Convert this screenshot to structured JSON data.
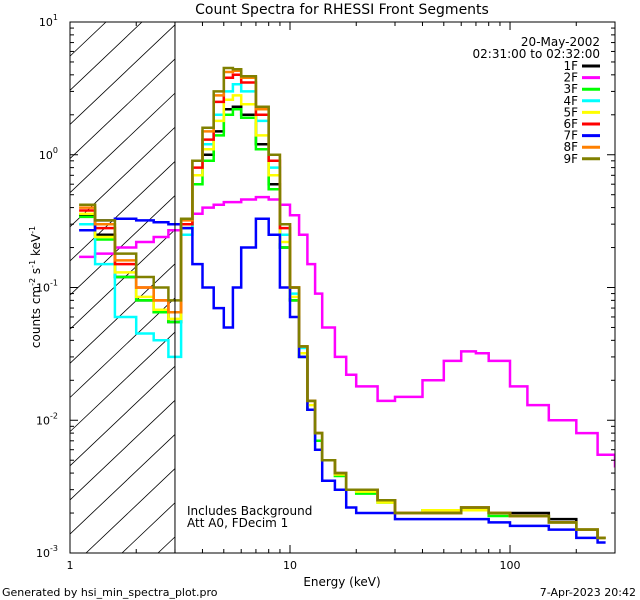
{
  "chart_data": {
    "type": "line",
    "title": "Count Spectra for RHESSI Front Segments",
    "xlabel": "Energy (keV)",
    "ylabel_base": "counts cm",
    "ylabel_sup1": "-2",
    "ylabel_mid": " s",
    "ylabel_sup2": "-1",
    "ylabel_end": " keV",
    "ylabel_sup3": "-1",
    "xscale": "log",
    "yscale": "log",
    "xlim": [
      1,
      300
    ],
    "ylim": [
      0.001,
      10
    ],
    "x_ticks": [
      {
        "value": 1,
        "label": "1"
      },
      {
        "value": 10,
        "label": "10"
      },
      {
        "value": 100,
        "label": "100"
      }
    ],
    "y_ticks": [
      {
        "value": 0.001,
        "base": "10",
        "exp": "-3"
      },
      {
        "value": 0.01,
        "base": "10",
        "exp": "-2"
      },
      {
        "value": 0.1,
        "base": "10",
        "exp": "-1"
      },
      {
        "value": 1,
        "base": "10",
        "exp": "0"
      },
      {
        "value": 10,
        "base": "10",
        "exp": "1"
      }
    ],
    "shaded_region": {
      "x_from": 1,
      "x_to": 3,
      "style": "hatched"
    },
    "date": "20-May-2002",
    "time_range": "02:31:00 to 02:32:00",
    "annotations": [
      "Includes Background",
      "Att A0, FDecim 1"
    ],
    "series": [
      {
        "name": "1F",
        "color": "#000000",
        "x": [
          1.1,
          1.3,
          1.6,
          2.0,
          2.4,
          2.8,
          3.2,
          3.6,
          4.0,
          4.5,
          5.0,
          5.5,
          6.0,
          7.0,
          8.0,
          9.0,
          10,
          11,
          12,
          13,
          14,
          16,
          18,
          20,
          25,
          30,
          40,
          60,
          80,
          100,
          150,
          200,
          250
        ],
        "values": [
          0.35,
          0.25,
          0.12,
          0.08,
          0.065,
          0.055,
          0.3,
          0.7,
          1.0,
          1.5,
          2.2,
          2.3,
          2.0,
          1.2,
          0.6,
          0.2,
          0.08,
          0.03,
          0.012,
          0.008,
          0.005,
          0.004,
          0.003,
          0.003,
          0.0025,
          0.002,
          0.002,
          0.0022,
          0.002,
          0.002,
          0.0018,
          0.0015,
          0.0013
        ]
      },
      {
        "name": "2F",
        "color": "#ff00ff",
        "x": [
          1.1,
          1.3,
          1.6,
          2.0,
          2.4,
          2.8,
          3.2,
          3.6,
          4.0,
          4.5,
          5.0,
          6.0,
          7.0,
          8.0,
          9.0,
          10,
          11,
          12,
          13,
          14,
          16,
          18,
          20,
          25,
          30,
          40,
          50,
          60,
          70,
          80,
          100,
          120,
          150,
          200,
          250,
          300
        ],
        "values": [
          0.17,
          0.18,
          0.2,
          0.22,
          0.24,
          0.27,
          0.3,
          0.36,
          0.4,
          0.42,
          0.44,
          0.46,
          0.48,
          0.46,
          0.42,
          0.35,
          0.25,
          0.15,
          0.09,
          0.05,
          0.03,
          0.022,
          0.018,
          0.014,
          0.015,
          0.02,
          0.028,
          0.033,
          0.032,
          0.028,
          0.018,
          0.013,
          0.01,
          0.008,
          0.0055,
          0.0045
        ]
      },
      {
        "name": "3F",
        "color": "#00ff00",
        "x": [
          1.1,
          1.3,
          1.6,
          2.0,
          2.4,
          2.8,
          3.2,
          3.6,
          4.0,
          4.5,
          5.0,
          5.5,
          6.0,
          7.0,
          8.0,
          9.0,
          10,
          11,
          12,
          13,
          14,
          16,
          18,
          20,
          25,
          30,
          40,
          60,
          80,
          100,
          150,
          200,
          250
        ],
        "values": [
          0.34,
          0.23,
          0.12,
          0.08,
          0.065,
          0.055,
          0.28,
          0.6,
          0.9,
          1.4,
          2.0,
          2.2,
          1.9,
          1.1,
          0.55,
          0.2,
          0.08,
          0.03,
          0.012,
          0.007,
          0.005,
          0.0038,
          0.003,
          0.0028,
          0.0024,
          0.002,
          0.0021,
          0.0021,
          0.0019,
          0.0019,
          0.0017,
          0.0015,
          0.0013
        ]
      },
      {
        "name": "4F",
        "color": "#00ffff",
        "x": [
          1.1,
          1.3,
          1.6,
          2.0,
          2.4,
          2.8,
          3.2,
          3.6,
          4.0,
          4.5,
          5.0,
          5.5,
          6.0,
          7.0,
          8.0,
          9.0,
          10,
          11,
          12,
          13,
          14,
          16,
          18,
          20,
          25,
          30,
          40,
          60,
          80,
          100,
          150,
          200,
          250
        ],
        "values": [
          0.3,
          0.15,
          0.06,
          0.045,
          0.04,
          0.03,
          0.25,
          0.7,
          1.2,
          2.0,
          3.0,
          3.4,
          3.0,
          1.8,
          0.8,
          0.25,
          0.09,
          0.035,
          0.014,
          0.008,
          0.005,
          0.004,
          0.003,
          0.003,
          0.0025,
          0.002,
          0.002,
          0.0022,
          0.002,
          0.0019,
          0.0017,
          0.0015,
          0.0013
        ]
      },
      {
        "name": "5F",
        "color": "#ffff00",
        "x": [
          1.1,
          1.3,
          1.6,
          2.0,
          2.4,
          2.8,
          3.2,
          3.6,
          4.0,
          4.5,
          5.0,
          5.5,
          6.0,
          7.0,
          8.0,
          9.0,
          10,
          11,
          12,
          13,
          14,
          16,
          18,
          20,
          25,
          30,
          40,
          60,
          80,
          100,
          150,
          200,
          250
        ],
        "values": [
          0.36,
          0.24,
          0.13,
          0.085,
          0.068,
          0.058,
          0.3,
          0.7,
          1.1,
          1.8,
          2.6,
          2.8,
          2.4,
          1.4,
          0.7,
          0.22,
          0.085,
          0.032,
          0.013,
          0.008,
          0.005,
          0.0039,
          0.003,
          0.0029,
          0.0024,
          0.002,
          0.0021,
          0.0021,
          0.002,
          0.0019,
          0.0017,
          0.0015,
          0.0013
        ]
      },
      {
        "name": "6F",
        "color": "#ff0000",
        "x": [
          1.1,
          1.3,
          1.6,
          2.0,
          2.4,
          2.8,
          3.2,
          3.6,
          4.0,
          4.5,
          5.0,
          5.5,
          6.0,
          7.0,
          8.0,
          9.0,
          10,
          11,
          12,
          13,
          14,
          16,
          18,
          20,
          25,
          30,
          40,
          60,
          80,
          100,
          150,
          200,
          250
        ],
        "values": [
          0.38,
          0.28,
          0.15,
          0.1,
          0.08,
          0.065,
          0.3,
          0.8,
          1.3,
          2.5,
          3.8,
          4.0,
          3.5,
          2.0,
          0.9,
          0.28,
          0.1,
          0.036,
          0.014,
          0.008,
          0.005,
          0.004,
          0.003,
          0.003,
          0.0025,
          0.002,
          0.002,
          0.0022,
          0.002,
          0.0019,
          0.0017,
          0.0015,
          0.0013
        ]
      },
      {
        "name": "7F",
        "color": "#0000ff",
        "x": [
          1.1,
          1.3,
          1.6,
          2.0,
          2.4,
          2.8,
          3.2,
          3.6,
          4.0,
          4.5,
          5.0,
          5.5,
          6.0,
          7.0,
          8.0,
          9.0,
          10,
          11,
          12,
          13,
          14,
          16,
          18,
          20,
          25,
          30,
          40,
          60,
          80,
          100,
          150,
          200,
          250
        ],
        "values": [
          0.27,
          0.32,
          0.33,
          0.32,
          0.31,
          0.3,
          0.28,
          0.15,
          0.1,
          0.07,
          0.05,
          0.1,
          0.2,
          0.33,
          0.25,
          0.1,
          0.06,
          0.03,
          0.012,
          0.006,
          0.0035,
          0.003,
          0.0022,
          0.002,
          0.002,
          0.0018,
          0.0018,
          0.0018,
          0.0017,
          0.0016,
          0.0015,
          0.0013,
          0.0012
        ]
      },
      {
        "name": "8F",
        "color": "#ff8000",
        "x": [
          1.1,
          1.3,
          1.6,
          2.0,
          2.4,
          2.8,
          3.2,
          3.6,
          4.0,
          4.5,
          5.0,
          5.5,
          6.0,
          7.0,
          8.0,
          9.0,
          10,
          11,
          12,
          13,
          14,
          16,
          18,
          20,
          25,
          30,
          40,
          60,
          80,
          100,
          150,
          200,
          250
        ],
        "values": [
          0.4,
          0.3,
          0.16,
          0.1,
          0.08,
          0.065,
          0.32,
          0.9,
          1.5,
          2.8,
          4.2,
          4.3,
          3.8,
          2.2,
          1.0,
          0.3,
          0.1,
          0.036,
          0.014,
          0.008,
          0.005,
          0.004,
          0.003,
          0.003,
          0.0025,
          0.002,
          0.002,
          0.0022,
          0.002,
          0.0019,
          0.0017,
          0.0015,
          0.0013
        ]
      },
      {
        "name": "9F",
        "color": "#808000",
        "x": [
          1.1,
          1.3,
          1.6,
          2.0,
          2.4,
          2.8,
          3.2,
          3.6,
          4.0,
          4.5,
          5.0,
          5.5,
          6.0,
          7.0,
          8.0,
          9.0,
          10,
          11,
          12,
          13,
          14,
          16,
          18,
          20,
          25,
          30,
          40,
          60,
          80,
          100,
          150,
          200,
          250
        ],
        "values": [
          0.42,
          0.32,
          0.18,
          0.12,
          0.1,
          0.08,
          0.33,
          0.9,
          1.6,
          3.0,
          4.5,
          4.4,
          3.9,
          2.3,
          1.0,
          0.3,
          0.1,
          0.036,
          0.014,
          0.008,
          0.005,
          0.004,
          0.003,
          0.003,
          0.0025,
          0.002,
          0.002,
          0.0022,
          0.002,
          0.0019,
          0.0017,
          0.0015,
          0.0013
        ]
      }
    ]
  },
  "footer": {
    "left": "Generated by hsi_min_spectra_plot.pro",
    "right": "7-Apr-2023 20:42"
  }
}
